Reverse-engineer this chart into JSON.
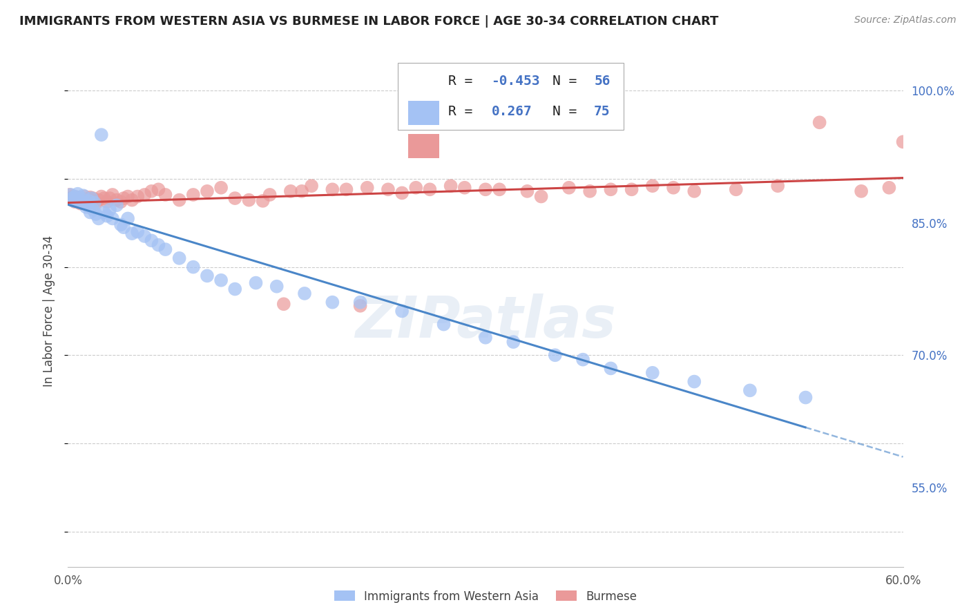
{
  "title": "IMMIGRANTS FROM WESTERN ASIA VS BURMESE IN LABOR FORCE | AGE 30-34 CORRELATION CHART",
  "source": "Source: ZipAtlas.com",
  "ylabel": "In Labor Force | Age 30-34",
  "x_min": 0.0,
  "x_max": 0.6,
  "y_min": 0.46,
  "y_max": 1.04,
  "x_ticks": [
    0.0,
    0.1,
    0.2,
    0.3,
    0.4,
    0.5,
    0.6
  ],
  "x_tick_labels": [
    "0.0%",
    "",
    "",
    "",
    "",
    "",
    "60.0%"
  ],
  "y_ticks": [
    0.55,
    0.7,
    0.85,
    1.0
  ],
  "y_tick_labels": [
    "55.0%",
    "70.0%",
    "85.0%",
    "100.0%"
  ],
  "legend_R_blue": "-0.453",
  "legend_N_blue": "56",
  "legend_R_pink": "0.267",
  "legend_N_pink": "75",
  "blue_color": "#a4c2f4",
  "pink_color": "#ea9999",
  "blue_line_color": "#4a86c8",
  "pink_line_color": "#cc4444",
  "watermark": "ZIPatlas",
  "blue_scatter_x": [
    0.002,
    0.003,
    0.004,
    0.005,
    0.006,
    0.007,
    0.008,
    0.009,
    0.01,
    0.011,
    0.012,
    0.013,
    0.014,
    0.015,
    0.016,
    0.017,
    0.018,
    0.019,
    0.02,
    0.022,
    0.024,
    0.026,
    0.028,
    0.03,
    0.032,
    0.035,
    0.038,
    0.04,
    0.043,
    0.046,
    0.05,
    0.055,
    0.06,
    0.065,
    0.07,
    0.08,
    0.09,
    0.1,
    0.11,
    0.12,
    0.135,
    0.15,
    0.17,
    0.19,
    0.21,
    0.24,
    0.27,
    0.3,
    0.32,
    0.35,
    0.37,
    0.39,
    0.42,
    0.45,
    0.49,
    0.53
  ],
  "blue_scatter_y": [
    0.882,
    0.878,
    0.875,
    0.88,
    0.877,
    0.883,
    0.876,
    0.879,
    0.874,
    0.881,
    0.872,
    0.868,
    0.87,
    0.875,
    0.862,
    0.878,
    0.865,
    0.873,
    0.86,
    0.855,
    0.95,
    0.862,
    0.858,
    0.865,
    0.855,
    0.87,
    0.848,
    0.845,
    0.855,
    0.838,
    0.84,
    0.835,
    0.83,
    0.825,
    0.82,
    0.81,
    0.8,
    0.79,
    0.785,
    0.775,
    0.782,
    0.778,
    0.77,
    0.76,
    0.76,
    0.75,
    0.735,
    0.72,
    0.715,
    0.7,
    0.695,
    0.685,
    0.68,
    0.67,
    0.66,
    0.652
  ],
  "pink_scatter_x": [
    0.001,
    0.002,
    0.003,
    0.004,
    0.005,
    0.006,
    0.007,
    0.008,
    0.009,
    0.01,
    0.011,
    0.012,
    0.013,
    0.014,
    0.015,
    0.016,
    0.017,
    0.018,
    0.019,
    0.02,
    0.022,
    0.024,
    0.026,
    0.028,
    0.03,
    0.032,
    0.035,
    0.038,
    0.04,
    0.043,
    0.046,
    0.05,
    0.055,
    0.06,
    0.065,
    0.07,
    0.08,
    0.09,
    0.1,
    0.11,
    0.12,
    0.13,
    0.145,
    0.16,
    0.175,
    0.19,
    0.21,
    0.23,
    0.25,
    0.275,
    0.3,
    0.33,
    0.36,
    0.39,
    0.42,
    0.45,
    0.48,
    0.51,
    0.54,
    0.57,
    0.59,
    0.6,
    0.14,
    0.155,
    0.168,
    0.2,
    0.215,
    0.24,
    0.26,
    0.285,
    0.31,
    0.34,
    0.375,
    0.405,
    0.435
  ],
  "pink_scatter_y": [
    0.882,
    0.878,
    0.876,
    0.88,
    0.874,
    0.877,
    0.879,
    0.875,
    0.872,
    0.878,
    0.873,
    0.88,
    0.876,
    0.873,
    0.877,
    0.879,
    0.874,
    0.878,
    0.875,
    0.872,
    0.876,
    0.88,
    0.878,
    0.874,
    0.878,
    0.882,
    0.876,
    0.874,
    0.878,
    0.88,
    0.876,
    0.88,
    0.882,
    0.886,
    0.888,
    0.882,
    0.876,
    0.882,
    0.886,
    0.89,
    0.878,
    0.876,
    0.882,
    0.886,
    0.892,
    0.888,
    0.756,
    0.888,
    0.89,
    0.892,
    0.888,
    0.886,
    0.89,
    0.888,
    0.892,
    0.886,
    0.888,
    0.892,
    0.964,
    0.886,
    0.89,
    0.942,
    0.875,
    0.758,
    0.886,
    0.888,
    0.89,
    0.884,
    0.888,
    0.89,
    0.888,
    0.88,
    0.886,
    0.888,
    0.89
  ]
}
